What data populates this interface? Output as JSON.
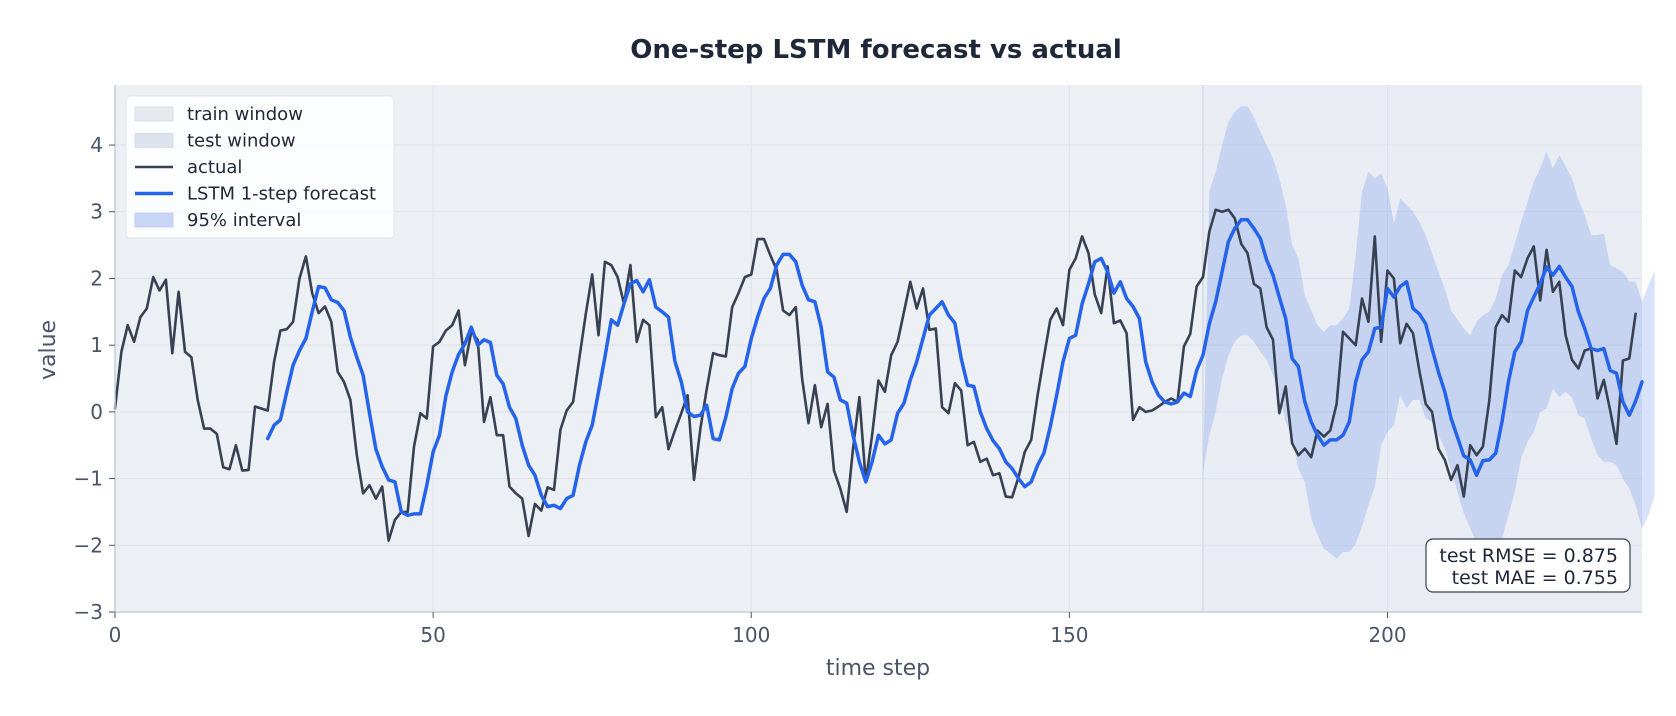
{
  "chart_data": {
    "type": "line",
    "title": "One-step LSTM forecast vs actual",
    "xlabel": "time step",
    "ylabel": "value",
    "xlim": [
      0,
      240
    ],
    "ylim": [
      -3,
      4.9
    ],
    "xticks": [
      0,
      50,
      100,
      150,
      200
    ],
    "yticks": [
      -3,
      -2,
      -1,
      0,
      1,
      2,
      3,
      4
    ],
    "xtick_labels": [
      "0",
      "50",
      "100",
      "150",
      "200"
    ],
    "ytick_labels": [
      "−3",
      "−2",
      "−1",
      "0",
      "1",
      "2",
      "3",
      "4"
    ],
    "grid": true,
    "legend_position": "top-left",
    "train_window": [
      0,
      171
    ],
    "test_window": [
      171,
      240
    ],
    "series": [
      {
        "name": "actual",
        "color": "#374151",
        "x_start": 0,
        "values": [
          0.05,
          0.9,
          1.3,
          1.05,
          1.42,
          1.55,
          2.02,
          1.82,
          1.98,
          0.88,
          1.8,
          0.9,
          0.82,
          0.18,
          -0.25,
          -0.25,
          -0.33,
          -0.83,
          -0.86,
          -0.5,
          -0.88,
          -0.87,
          0.08,
          0.05,
          0.02,
          0.75,
          1.22,
          1.24,
          1.35,
          2.0,
          2.33,
          1.78,
          1.48,
          1.58,
          1.35,
          0.6,
          0.45,
          0.18,
          -0.65,
          -1.22,
          -1.1,
          -1.3,
          -1.12,
          -1.93,
          -1.62,
          -1.5,
          -1.5,
          -0.52,
          -0.02,
          -0.1,
          0.98,
          1.05,
          1.22,
          1.3,
          1.52,
          0.7,
          1.2,
          1.08,
          -0.15,
          0.22,
          -0.35,
          -0.35,
          -1.12,
          -1.22,
          -1.3,
          -1.86,
          -1.38,
          -1.48,
          -1.13,
          -1.17,
          -0.27,
          0.02,
          0.15,
          0.82,
          1.47,
          2.06,
          1.15,
          2.25,
          2.2,
          2.02,
          1.62,
          2.2,
          1.05,
          1.38,
          1.3,
          -0.08,
          0.07,
          -0.56,
          -0.28,
          -0.02,
          0.25,
          -1.02,
          -0.25,
          0.34,
          0.88,
          0.85,
          0.83,
          1.57,
          1.78,
          2.02,
          2.06,
          2.59,
          2.59,
          2.35,
          2.13,
          1.52,
          1.45,
          1.57,
          0.5,
          -0.17,
          0.4,
          -0.23,
          0.12,
          -0.88,
          -1.15,
          -1.5,
          -0.55,
          0.22,
          -1.05,
          -0.35,
          0.47,
          0.3,
          0.85,
          1.05,
          1.5,
          1.95,
          1.55,
          1.85,
          1.23,
          1.25,
          0.07,
          -0.02,
          0.43,
          0.32,
          -0.5,
          -0.45,
          -0.75,
          -0.7,
          -0.95,
          -0.92,
          -1.27,
          -1.28,
          -0.98,
          -0.6,
          -0.42,
          0.25,
          0.82,
          1.38,
          1.55,
          1.3,
          2.13,
          2.3,
          2.63,
          2.38,
          1.76,
          1.48,
          2.18,
          1.33,
          1.37,
          1.18,
          -0.12,
          0.07,
          0.0,
          0.02,
          0.08,
          0.15,
          0.2,
          0.15,
          0.98,
          1.17,
          1.88,
          2.02,
          2.7,
          3.03,
          3.0,
          3.03,
          2.9,
          2.52,
          2.38,
          1.92,
          1.85,
          1.27,
          1.08,
          -0.02,
          0.38,
          -0.47,
          -0.65,
          -0.55,
          -0.68,
          -0.28,
          -0.37,
          -0.28,
          0.12,
          1.2,
          1.1,
          1.0,
          1.7,
          1.35,
          2.63,
          1.05,
          2.12,
          2.0,
          1.03,
          1.32,
          1.18,
          0.62,
          0.12,
          0.0,
          -0.55,
          -0.72,
          -1.02,
          -0.8,
          -1.27,
          -0.5,
          -0.65,
          -0.52,
          0.17,
          1.27,
          1.45,
          1.35,
          2.12,
          2.02,
          2.3,
          2.48,
          1.67,
          2.43,
          1.8,
          1.95,
          1.15,
          0.78,
          0.65,
          0.92,
          0.95,
          0.2,
          0.48,
          0.02,
          -0.48,
          0.77,
          0.8,
          1.47
        ]
      },
      {
        "name": "LSTM 1-step forecast",
        "color": "#2563eb",
        "x_start": 24,
        "values": [
          -0.4,
          -0.2,
          -0.12,
          0.3,
          0.7,
          0.92,
          1.1,
          1.5,
          1.88,
          1.86,
          1.68,
          1.64,
          1.52,
          1.12,
          0.82,
          0.55,
          -0.02,
          -0.56,
          -0.82,
          -1.02,
          -1.05,
          -1.5,
          -1.55,
          -1.53,
          -1.53,
          -1.1,
          -0.6,
          -0.35,
          0.24,
          0.6,
          0.86,
          1.02,
          1.27,
          1.0,
          1.08,
          1.04,
          0.55,
          0.42,
          0.07,
          -0.1,
          -0.5,
          -0.8,
          -0.95,
          -1.25,
          -1.42,
          -1.4,
          -1.45,
          -1.3,
          -1.25,
          -0.8,
          -0.45,
          -0.2,
          0.3,
          0.82,
          1.38,
          1.3,
          1.62,
          1.92,
          1.97,
          1.8,
          1.98,
          1.57,
          1.5,
          1.42,
          0.76,
          0.45,
          0.0,
          -0.07,
          -0.05,
          0.1,
          -0.4,
          -0.42,
          -0.08,
          0.35,
          0.58,
          0.68,
          1.1,
          1.42,
          1.7,
          1.85,
          2.2,
          2.36,
          2.36,
          2.25,
          1.9,
          1.68,
          1.65,
          1.27,
          0.6,
          0.52,
          0.18,
          0.13,
          -0.35,
          -0.75,
          -1.05,
          -0.75,
          -0.35,
          -0.48,
          -0.42,
          -0.02,
          0.13,
          0.48,
          0.75,
          1.1,
          1.45,
          1.55,
          1.65,
          1.45,
          1.33,
          0.8,
          0.4,
          0.38,
          0.0,
          -0.25,
          -0.43,
          -0.55,
          -0.75,
          -0.85,
          -1.0,
          -1.12,
          -1.05,
          -0.8,
          -0.62,
          -0.22,
          0.25,
          0.75,
          1.1,
          1.15,
          1.62,
          1.92,
          2.25,
          2.3,
          2.1,
          1.78,
          1.95,
          1.7,
          1.58,
          1.4,
          0.75,
          0.45,
          0.25,
          0.15,
          0.12,
          0.15,
          0.28,
          0.23,
          0.62,
          0.85,
          1.32,
          1.65,
          2.1,
          2.55,
          2.75,
          2.88,
          2.88,
          2.75,
          2.6,
          2.28,
          2.05,
          1.72,
          1.4,
          0.8,
          0.68,
          0.15,
          -0.15,
          -0.35,
          -0.5,
          -0.42,
          -0.42,
          -0.35,
          -0.15,
          0.45,
          0.78,
          0.9,
          1.25,
          1.27,
          1.85,
          1.72,
          1.88,
          1.95,
          1.55,
          1.47,
          1.32,
          0.95,
          0.6,
          0.3,
          -0.1,
          -0.38,
          -0.66,
          -0.72,
          -0.95,
          -0.73,
          -0.72,
          -0.62,
          -0.15,
          0.45,
          0.9,
          1.05,
          1.52,
          1.72,
          1.92,
          2.17,
          2.05,
          2.18,
          2.02,
          1.88,
          1.5,
          1.25,
          0.95,
          0.92,
          0.95,
          0.62,
          0.58,
          0.15,
          -0.05,
          0.16,
          0.45
        ]
      },
      {
        "name": "95% interval",
        "color": "#2563eb",
        "x_start": 171,
        "lower": [
          -0.9,
          -0.35,
          0.0,
          0.5,
          0.85,
          1.05,
          1.15,
          1.15,
          1.05,
          0.9,
          0.78,
          0.55,
          0.25,
          -0.15,
          -0.4,
          -0.85,
          -1.05,
          -1.6,
          -1.85,
          -2.05,
          -2.12,
          -2.2,
          -2.1,
          -2.1,
          -1.98,
          -1.72,
          -1.4,
          -1.12,
          -0.5,
          -0.3,
          -0.2,
          0.25,
          0.05,
          0.18,
          0.18,
          -0.1,
          -0.15,
          -0.35,
          -0.55,
          -0.88,
          -1.2,
          -1.52,
          -1.75,
          -1.95,
          -2.05,
          -1.98,
          -2.0,
          -1.9,
          -1.55,
          -1.2,
          -0.7,
          -0.45,
          -0.3,
          0.0,
          0.05,
          0.35,
          0.22,
          0.3,
          0.22,
          -0.05,
          -0.1,
          -0.4,
          -0.65,
          -0.75,
          -0.75,
          -0.8,
          -1.0,
          -1.15,
          -1.4,
          -1.75,
          -1.55,
          -1.25
        ],
        "upper": [
          -0.9,
          3.3,
          3.6,
          4.0,
          4.35,
          4.5,
          4.58,
          4.58,
          4.42,
          4.2,
          4.0,
          3.8,
          3.5,
          3.1,
          2.5,
          2.3,
          1.75,
          1.52,
          1.3,
          1.2,
          1.3,
          1.3,
          1.4,
          1.55,
          2.35,
          3.3,
          3.6,
          3.5,
          3.58,
          3.35,
          2.82,
          3.2,
          3.1,
          3.0,
          2.85,
          2.65,
          2.38,
          2.1,
          1.85,
          1.52,
          1.38,
          1.25,
          1.15,
          1.35,
          1.45,
          1.5,
          1.7,
          2.05,
          2.2,
          2.52,
          2.85,
          3.15,
          3.45,
          3.65,
          3.9,
          3.65,
          3.85,
          3.68,
          3.5,
          3.18,
          2.95,
          2.65,
          2.65,
          2.67,
          2.2,
          2.15,
          2.1,
          1.95,
          1.95,
          1.65,
          1.9,
          2.12
        ]
      }
    ],
    "legend": [
      {
        "label": "train window",
        "kind": "patch",
        "color": "#e6e9ef"
      },
      {
        "label": "test window",
        "kind": "patch",
        "color": "#dde3ec"
      },
      {
        "label": "actual",
        "kind": "line",
        "color": "#374151"
      },
      {
        "label": "LSTM 1-step forecast",
        "kind": "line",
        "color": "#2563eb"
      },
      {
        "label": "95% interval",
        "kind": "patch",
        "color": "#c8d6f6"
      }
    ],
    "annotations": [
      "test RMSE = 0.875",
      "test MAE = 0.755"
    ]
  }
}
